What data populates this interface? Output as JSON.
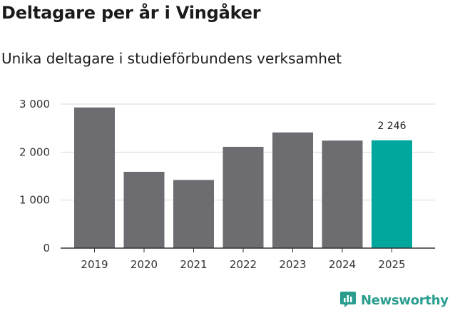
{
  "chart_data": {
    "type": "bar",
    "title": "Deltagare per år i Vingåker",
    "subtitle": "Unika deltagare i studieförbundens verksamhet",
    "categories": [
      "2019",
      "2020",
      "2021",
      "2022",
      "2023",
      "2024",
      "2025"
    ],
    "values": [
      2930,
      1590,
      1420,
      2110,
      2410,
      2240,
      2246
    ],
    "ylim": [
      0,
      3000
    ],
    "yticks": [
      0,
      1000,
      2000,
      3000
    ],
    "ytick_labels": [
      "0",
      "1 000",
      "2 000",
      "3 000"
    ],
    "grid": true,
    "highlight_index": 6,
    "data_labels": [
      {
        "index": 6,
        "text": "2 246"
      }
    ],
    "colors": {
      "bar": "#6d6c71",
      "highlight": "#00a79d",
      "grid": "#d9d9d9",
      "axis": "#333333"
    }
  },
  "brand": {
    "name": "Newsworthy",
    "icon": "newsworthy-logo-icon",
    "color": "#2a9d8f"
  }
}
